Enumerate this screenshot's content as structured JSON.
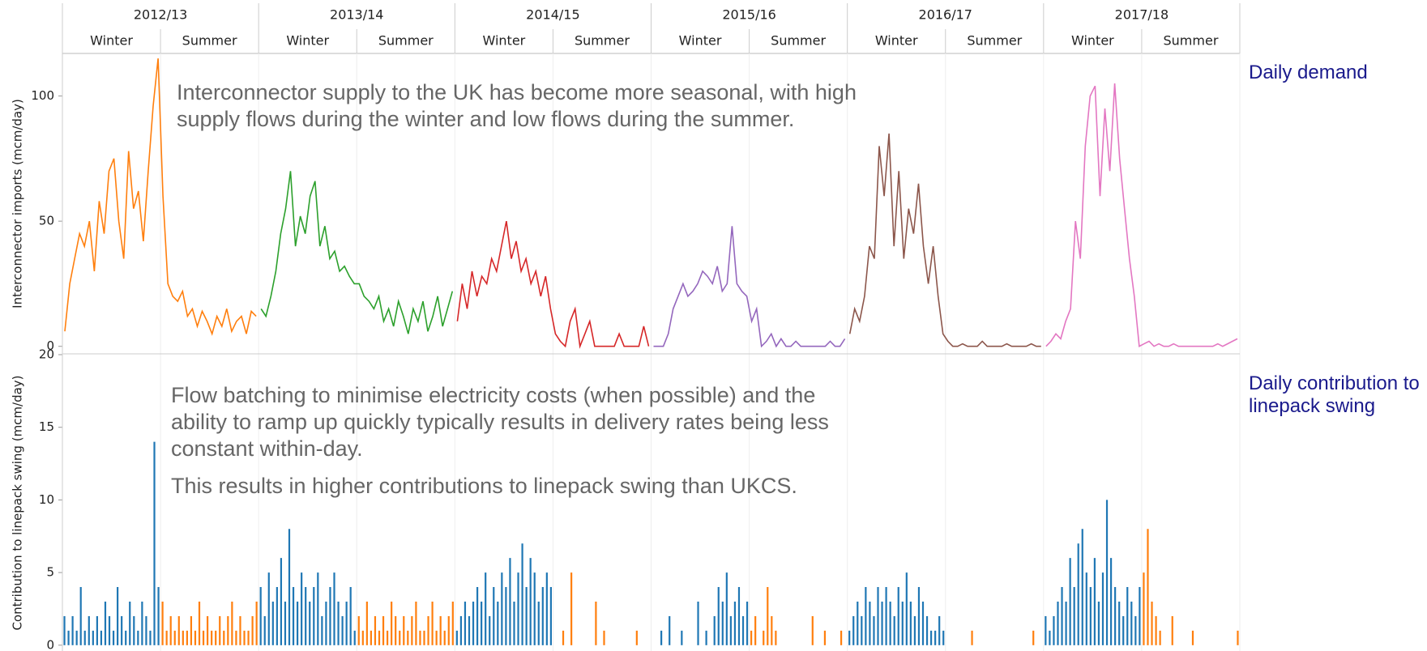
{
  "chart_data": [
    {
      "type": "line",
      "y_label": "Interconnector imports (mcm/day)",
      "panel_label": "Daily demand",
      "annotation": "Interconnector supply to the UK has become more seasonal, with high supply flows during the winter and low flows during the summer.",
      "seasons": [
        "Winter",
        "Summer",
        "Winter",
        "Summer",
        "Winter",
        "Summer",
        "Winter",
        "Summer",
        "Winter",
        "Summer",
        "Winter",
        "Summer"
      ],
      "ylim": [
        -3,
        117
      ],
      "yticks": [
        0,
        50,
        100
      ],
      "series": [
        {
          "name": "2012/13",
          "color": "#ff7f0e",
          "values": [
            6,
            25,
            35,
            45,
            40,
            50,
            30,
            58,
            45,
            70,
            75,
            50,
            35,
            78,
            55,
            62,
            42,
            70,
            96,
            115,
            60,
            25,
            20,
            18,
            22,
            12,
            15,
            8,
            14,
            10,
            5,
            12,
            8,
            15,
            6,
            10,
            12,
            5,
            14,
            12
          ]
        },
        {
          "name": "2013/14",
          "color": "#2ca02c",
          "values": [
            15,
            12,
            20,
            30,
            45,
            55,
            70,
            40,
            52,
            45,
            60,
            66,
            40,
            48,
            35,
            38,
            30,
            32,
            28,
            25,
            25,
            20,
            18,
            15,
            20,
            10,
            15,
            8,
            18,
            12,
            5,
            15,
            10,
            18,
            6,
            12,
            20,
            8,
            15,
            22
          ]
        },
        {
          "name": "2014/15",
          "color": "#d62728",
          "values": [
            10,
            25,
            15,
            30,
            20,
            28,
            25,
            35,
            30,
            40,
            50,
            35,
            42,
            30,
            35,
            25,
            30,
            20,
            28,
            15,
            5,
            2,
            0,
            10,
            15,
            0,
            5,
            10,
            0,
            0,
            0,
            0,
            0,
            5,
            0,
            0,
            0,
            0,
            8,
            0
          ]
        },
        {
          "name": "2015/16",
          "color": "#9467bd",
          "values": [
            0,
            0,
            0,
            5,
            15,
            20,
            25,
            20,
            22,
            25,
            30,
            28,
            25,
            32,
            22,
            25,
            48,
            25,
            22,
            20,
            10,
            15,
            0,
            2,
            5,
            0,
            3,
            0,
            0,
            2,
            0,
            0,
            0,
            0,
            0,
            0,
            2,
            0,
            0,
            3
          ]
        },
        {
          "name": "2016/17",
          "color": "#8c564b",
          "values": [
            5,
            15,
            10,
            20,
            40,
            35,
            80,
            60,
            85,
            40,
            70,
            35,
            55,
            45,
            65,
            40,
            25,
            40,
            20,
            5,
            2,
            0,
            0,
            1,
            0,
            0,
            0,
            2,
            0,
            0,
            0,
            0,
            1,
            0,
            0,
            0,
            0,
            1,
            0,
            0
          ]
        },
        {
          "name": "2017/18",
          "color": "#e377c2",
          "values": [
            0,
            2,
            5,
            3,
            10,
            15,
            50,
            35,
            80,
            100,
            104,
            60,
            95,
            70,
            105,
            75,
            55,
            35,
            20,
            0,
            1,
            2,
            0,
            1,
            0,
            0,
            1,
            0,
            0,
            0,
            0,
            0,
            0,
            0,
            0,
            1,
            0,
            1,
            2,
            3
          ]
        }
      ]
    },
    {
      "type": "spike",
      "y_label": "Contribution to linepack swing (mcm/day)",
      "panel_label": "Daily contribution to linepack swing",
      "annotations": [
        "Flow batching to minimise electricity costs (when possible) and the ability to ramp up quickly typically results in delivery rates  being less constant within-day.",
        "This results in higher contributions to linepack swing than UKCS."
      ],
      "ylim": [
        -0.4,
        20
      ],
      "yticks": [
        0,
        5,
        10,
        15,
        20
      ],
      "series": [
        {
          "color": "#1f77b4",
          "values": [
            2,
            1,
            2,
            1,
            4,
            1,
            2,
            1,
            2,
            1,
            3,
            2,
            1,
            4,
            2,
            1,
            3,
            2,
            1,
            3,
            2,
            1,
            14,
            4
          ]
        },
        {
          "color": "#ff7f0e",
          "values": [
            3,
            1,
            2,
            1,
            2,
            1,
            1,
            2,
            1,
            3,
            1,
            2,
            1,
            1,
            2,
            1,
            2,
            3,
            1,
            2,
            1,
            1,
            2,
            3
          ]
        },
        {
          "color": "#1f77b4",
          "values": [
            4,
            2,
            5,
            3,
            4,
            6,
            3,
            8,
            4,
            3,
            5,
            4,
            3,
            4,
            5,
            2,
            3,
            4,
            5,
            3,
            2,
            3,
            4,
            1
          ]
        },
        {
          "color": "#ff7f0e",
          "values": [
            2,
            1,
            3,
            1,
            2,
            1,
            2,
            1,
            3,
            2,
            1,
            2,
            1,
            2,
            3,
            1,
            1,
            2,
            3,
            1,
            2,
            1,
            2,
            3
          ]
        },
        {
          "color": "#1f77b4",
          "values": [
            1,
            2,
            3,
            2,
            3,
            4,
            3,
            5,
            2,
            4,
            3,
            5,
            4,
            6,
            3,
            5,
            7,
            4,
            6,
            5,
            3,
            4,
            5,
            4
          ]
        },
        {
          "color": "#ff7f0e",
          "values": [
            0,
            0,
            1,
            0,
            5,
            0,
            0,
            0,
            0,
            0,
            3,
            0,
            1,
            0,
            0,
            0,
            0,
            0,
            0,
            0,
            1,
            0,
            0,
            0
          ]
        },
        {
          "color": "#1f77b4",
          "values": [
            0,
            0,
            1,
            0,
            2,
            0,
            0,
            1,
            0,
            0,
            0,
            3,
            0,
            1,
            0,
            2,
            4,
            3,
            5,
            2,
            3,
            4,
            2,
            3
          ]
        },
        {
          "color": "#ff7f0e",
          "values": [
            1,
            2,
            0,
            1,
            4,
            2,
            1,
            0,
            0,
            0,
            0,
            0,
            0,
            0,
            0,
            2,
            0,
            0,
            1,
            0,
            0,
            0,
            1,
            0
          ]
        },
        {
          "color": "#1f77b4",
          "values": [
            1,
            2,
            3,
            2,
            4,
            3,
            2,
            4,
            3,
            4,
            3,
            2,
            4,
            3,
            5,
            3,
            2,
            4,
            3,
            2,
            1,
            1,
            2,
            1
          ]
        },
        {
          "color": "#ff7f0e",
          "values": [
            0,
            0,
            0,
            0,
            0,
            0,
            1,
            0,
            0,
            0,
            0,
            0,
            0,
            0,
            0,
            0,
            0,
            0,
            0,
            0,
            0,
            1,
            0,
            0
          ]
        },
        {
          "color": "#1f77b4",
          "values": [
            2,
            1,
            2,
            3,
            4,
            3,
            6,
            4,
            7,
            8,
            5,
            4,
            6,
            3,
            5,
            10,
            6,
            4,
            3,
            2,
            4,
            3,
            2,
            4
          ]
        },
        {
          "color": "#ff7f0e",
          "values": [
            5,
            8,
            3,
            2,
            1,
            0,
            0,
            2,
            0,
            0,
            0,
            0,
            1,
            0,
            0,
            0,
            0,
            0,
            0,
            0,
            0,
            0,
            0,
            1
          ]
        }
      ]
    }
  ]
}
